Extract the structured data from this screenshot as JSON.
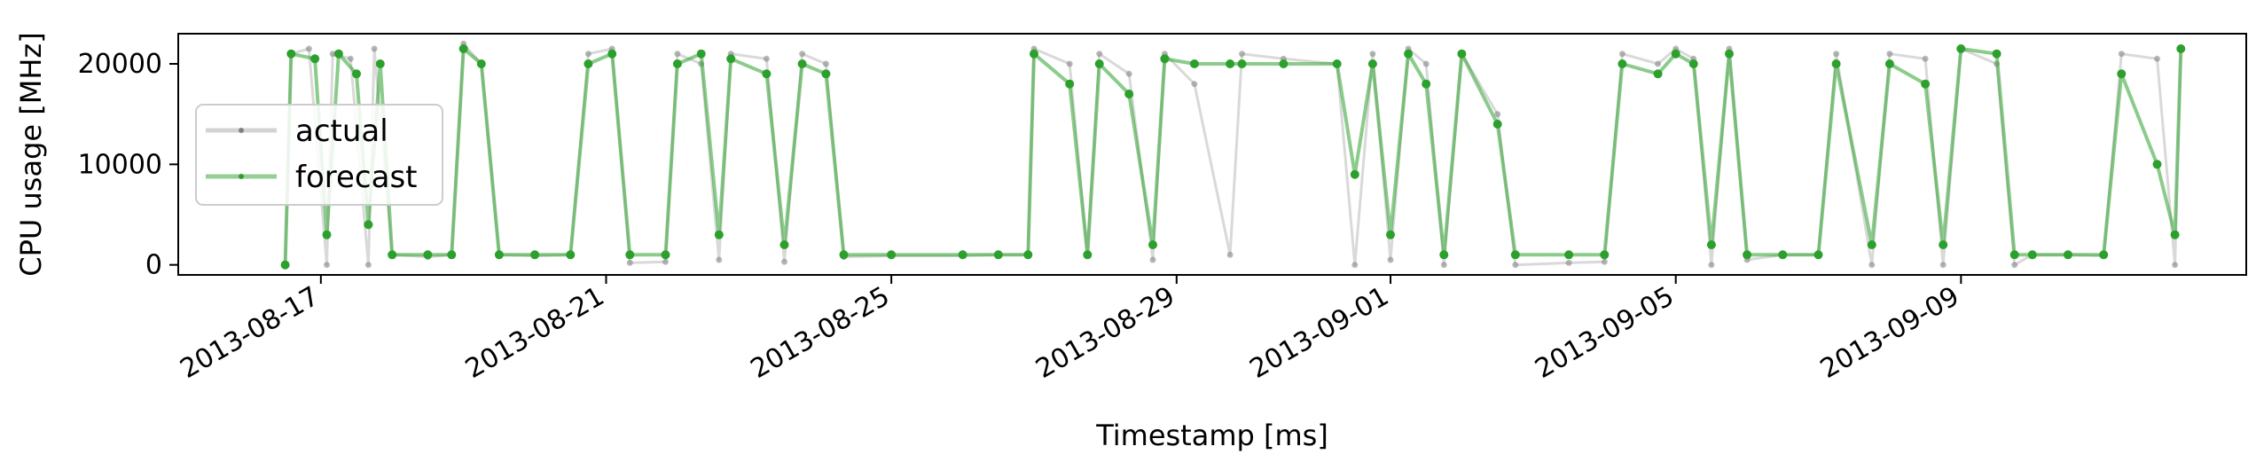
{
  "chart_data": {
    "type": "line",
    "title": "",
    "xlabel": "Timestamp [ms]",
    "ylabel": "CPU usage [MHz]",
    "x_ticks": [
      "2013-08-17",
      "2013-08-21",
      "2013-08-25",
      "2013-08-29",
      "2013-09-01",
      "2013-09-05",
      "2013-09-09"
    ],
    "y_ticks": [
      0,
      10000,
      20000
    ],
    "xlim": [
      "2013-08-15T00:00",
      "2013-09-13T00:00"
    ],
    "ylim": [
      -1000,
      23000
    ],
    "legend": {
      "position": "center-left",
      "entries": [
        "actual",
        "forecast"
      ]
    },
    "grid": false,
    "colors": {
      "actual": "#808080",
      "forecast": "#2ca02c"
    },
    "series": [
      {
        "name": "actual",
        "points": [
          [
            "2013-08-16T12:00",
            0
          ],
          [
            "2013-08-16T14:00",
            21000
          ],
          [
            "2013-08-16T20:00",
            21500
          ],
          [
            "2013-08-17T02:00",
            0
          ],
          [
            "2013-08-17T04:00",
            21000
          ],
          [
            "2013-08-17T10:00",
            20500
          ],
          [
            "2013-08-17T16:00",
            0
          ],
          [
            "2013-08-17T18:00",
            21500
          ],
          [
            "2013-08-18T00:00",
            1000
          ],
          [
            "2013-08-18T12:00",
            800
          ],
          [
            "2013-08-18T20:00",
            1000
          ],
          [
            "2013-08-19T00:00",
            22000
          ],
          [
            "2013-08-19T06:00",
            20000
          ],
          [
            "2013-08-19T12:00",
            1000
          ],
          [
            "2013-08-20T00:00",
            900
          ],
          [
            "2013-08-20T12:00",
            1000
          ],
          [
            "2013-08-20T18:00",
            21000
          ],
          [
            "2013-08-21T02:00",
            21500
          ],
          [
            "2013-08-21T08:00",
            200
          ],
          [
            "2013-08-21T20:00",
            300
          ],
          [
            "2013-08-22T00:00",
            21000
          ],
          [
            "2013-08-22T08:00",
            20000
          ],
          [
            "2013-08-22T14:00",
            500
          ],
          [
            "2013-08-22T18:00",
            21000
          ],
          [
            "2013-08-23T06:00",
            20500
          ],
          [
            "2013-08-23T12:00",
            300
          ],
          [
            "2013-08-23T18:00",
            21000
          ],
          [
            "2013-08-24T02:00",
            20000
          ],
          [
            "2013-08-24T08:00",
            800
          ],
          [
            "2013-08-25T00:00",
            900
          ],
          [
            "2013-08-26T00:00",
            900
          ],
          [
            "2013-08-26T12:00",
            1000
          ],
          [
            "2013-08-26T22:00",
            1000
          ],
          [
            "2013-08-27T00:00",
            21500
          ],
          [
            "2013-08-27T12:00",
            20000
          ],
          [
            "2013-08-27T18:00",
            1000
          ],
          [
            "2013-08-27T22:00",
            21000
          ],
          [
            "2013-08-28T08:00",
            19000
          ],
          [
            "2013-08-28T16:00",
            500
          ],
          [
            "2013-08-28T20:00",
            21000
          ],
          [
            "2013-08-29T06:00",
            18000
          ],
          [
            "2013-08-29T18:00",
            1000
          ],
          [
            "2013-08-29T22:00",
            21000
          ],
          [
            "2013-08-30T12:00",
            20500
          ],
          [
            "2013-08-31T06:00",
            20000
          ],
          [
            "2013-08-31T12:00",
            0
          ],
          [
            "2013-08-31T18:00",
            21000
          ],
          [
            "2013-09-01T00:00",
            500
          ],
          [
            "2013-09-01T06:00",
            21500
          ],
          [
            "2013-09-01T12:00",
            20000
          ],
          [
            "2013-09-01T18:00",
            0
          ],
          [
            "2013-09-02T00:00",
            21000
          ],
          [
            "2013-09-02T12:00",
            15000
          ],
          [
            "2013-09-02T18:00",
            0
          ],
          [
            "2013-09-03T12:00",
            200
          ],
          [
            "2013-09-04T00:00",
            300
          ],
          [
            "2013-09-04T06:00",
            21000
          ],
          [
            "2013-09-04T18:00",
            20000
          ],
          [
            "2013-09-05T00:00",
            21500
          ],
          [
            "2013-09-05T06:00",
            20500
          ],
          [
            "2013-09-05T12:00",
            0
          ],
          [
            "2013-09-05T18:00",
            21500
          ],
          [
            "2013-09-06T00:00",
            500
          ],
          [
            "2013-09-06T12:00",
            1000
          ],
          [
            "2013-09-07T00:00",
            1000
          ],
          [
            "2013-09-07T06:00",
            21000
          ],
          [
            "2013-09-07T18:00",
            0
          ],
          [
            "2013-09-08T00:00",
            21000
          ],
          [
            "2013-09-08T12:00",
            20500
          ],
          [
            "2013-09-08T18:00",
            0
          ],
          [
            "2013-09-09T00:00",
            21500
          ],
          [
            "2013-09-09T12:00",
            20000
          ],
          [
            "2013-09-09T18:00",
            0
          ],
          [
            "2013-09-10T00:00",
            1000
          ],
          [
            "2013-09-10T12:00",
            1000
          ],
          [
            "2013-09-11T00:00",
            900
          ],
          [
            "2013-09-11T06:00",
            21000
          ],
          [
            "2013-09-11T18:00",
            20500
          ],
          [
            "2013-09-12T00:00",
            0
          ],
          [
            "2013-09-12T02:00",
            21500
          ]
        ]
      },
      {
        "name": "forecast",
        "points": [
          [
            "2013-08-16T12:00",
            0
          ],
          [
            "2013-08-16T14:00",
            21000
          ],
          [
            "2013-08-16T22:00",
            20500
          ],
          [
            "2013-08-17T02:00",
            3000
          ],
          [
            "2013-08-17T06:00",
            21000
          ],
          [
            "2013-08-17T12:00",
            19000
          ],
          [
            "2013-08-17T16:00",
            4000
          ],
          [
            "2013-08-17T20:00",
            20000
          ],
          [
            "2013-08-18T00:00",
            1000
          ],
          [
            "2013-08-18T12:00",
            1000
          ],
          [
            "2013-08-18T20:00",
            1000
          ],
          [
            "2013-08-19T00:00",
            21500
          ],
          [
            "2013-08-19T06:00",
            20000
          ],
          [
            "2013-08-19T12:00",
            1000
          ],
          [
            "2013-08-20T00:00",
            1000
          ],
          [
            "2013-08-20T12:00",
            1000
          ],
          [
            "2013-08-20T18:00",
            20000
          ],
          [
            "2013-08-21T02:00",
            21000
          ],
          [
            "2013-08-21T08:00",
            1000
          ],
          [
            "2013-08-21T20:00",
            1000
          ],
          [
            "2013-08-22T00:00",
            20000
          ],
          [
            "2013-08-22T08:00",
            21000
          ],
          [
            "2013-08-22T14:00",
            3000
          ],
          [
            "2013-08-22T18:00",
            20500
          ],
          [
            "2013-08-23T06:00",
            19000
          ],
          [
            "2013-08-23T12:00",
            2000
          ],
          [
            "2013-08-23T18:00",
            20000
          ],
          [
            "2013-08-24T02:00",
            19000
          ],
          [
            "2013-08-24T08:00",
            1000
          ],
          [
            "2013-08-25T00:00",
            1000
          ],
          [
            "2013-08-26T00:00",
            1000
          ],
          [
            "2013-08-26T12:00",
            1000
          ],
          [
            "2013-08-26T22:00",
            1000
          ],
          [
            "2013-08-27T00:00",
            21000
          ],
          [
            "2013-08-27T12:00",
            18000
          ],
          [
            "2013-08-27T18:00",
            1000
          ],
          [
            "2013-08-27T22:00",
            20000
          ],
          [
            "2013-08-28T08:00",
            17000
          ],
          [
            "2013-08-28T16:00",
            2000
          ],
          [
            "2013-08-28T20:00",
            20500
          ],
          [
            "2013-08-29T06:00",
            20000
          ],
          [
            "2013-08-29T18:00",
            20000
          ],
          [
            "2013-08-29T22:00",
            20000
          ],
          [
            "2013-08-30T12:00",
            20000
          ],
          [
            "2013-08-31T06:00",
            20000
          ],
          [
            "2013-08-31T12:00",
            9000
          ],
          [
            "2013-08-31T18:00",
            20000
          ],
          [
            "2013-09-01T00:00",
            3000
          ],
          [
            "2013-09-01T06:00",
            21000
          ],
          [
            "2013-09-01T12:00",
            18000
          ],
          [
            "2013-09-01T18:00",
            1000
          ],
          [
            "2013-09-02T00:00",
            21000
          ],
          [
            "2013-09-02T12:00",
            14000
          ],
          [
            "2013-09-02T18:00",
            1000
          ],
          [
            "2013-09-03T12:00",
            1000
          ],
          [
            "2013-09-04T00:00",
            1000
          ],
          [
            "2013-09-04T06:00",
            20000
          ],
          [
            "2013-09-04T18:00",
            19000
          ],
          [
            "2013-09-05T00:00",
            21000
          ],
          [
            "2013-09-05T06:00",
            20000
          ],
          [
            "2013-09-05T12:00",
            2000
          ],
          [
            "2013-09-05T18:00",
            21000
          ],
          [
            "2013-09-06T00:00",
            1000
          ],
          [
            "2013-09-06T12:00",
            1000
          ],
          [
            "2013-09-07T00:00",
            1000
          ],
          [
            "2013-09-07T06:00",
            20000
          ],
          [
            "2013-09-07T18:00",
            2000
          ],
          [
            "2013-09-08T00:00",
            20000
          ],
          [
            "2013-09-08T12:00",
            18000
          ],
          [
            "2013-09-08T18:00",
            2000
          ],
          [
            "2013-09-09T00:00",
            21500
          ],
          [
            "2013-09-09T12:00",
            21000
          ],
          [
            "2013-09-09T18:00",
            1000
          ],
          [
            "2013-09-10T00:00",
            1000
          ],
          [
            "2013-09-10T12:00",
            1000
          ],
          [
            "2013-09-11T00:00",
            1000
          ],
          [
            "2013-09-11T06:00",
            19000
          ],
          [
            "2013-09-11T18:00",
            10000
          ],
          [
            "2013-09-12T00:00",
            3000
          ],
          [
            "2013-09-12T02:00",
            21500
          ]
        ]
      }
    ]
  }
}
